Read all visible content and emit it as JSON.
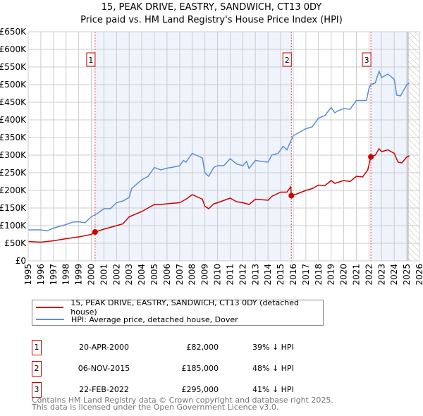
{
  "chart_data": {
    "type": "line",
    "title": "15, PEAK DRIVE, EASTRY, SANDWICH, CT13 0DY",
    "subtitle": "Price paid vs. HM Land Registry's House Price Index (HPI)",
    "xlim": [
      1995,
      2026
    ],
    "ylim": [
      0,
      650000
    ],
    "y_ticks": [
      0,
      50000,
      100000,
      150000,
      200000,
      250000,
      300000,
      350000,
      400000,
      450000,
      500000,
      550000,
      600000,
      650000
    ],
    "y_tick_labels": [
      "£0",
      "£50K",
      "£100K",
      "£150K",
      "£200K",
      "£250K",
      "£300K",
      "£350K",
      "£400K",
      "£450K",
      "£500K",
      "£550K",
      "£600K",
      "£650K"
    ],
    "x_tick_labels": [
      "1995",
      "1996",
      "1997",
      "1998",
      "1999",
      "2000",
      "2001",
      "2002",
      "2003",
      "2004",
      "2005",
      "2006",
      "2007",
      "2008",
      "2009",
      "2010",
      "2011",
      "2012",
      "2013",
      "2014",
      "2015",
      "2016",
      "2017",
      "2018",
      "2019",
      "2020",
      "2021",
      "2022",
      "2023",
      "2024",
      "2025",
      "2026"
    ],
    "grid": true,
    "series": [
      {
        "name": "15, PEAK DRIVE, EASTRY, SANDWICH, CT13 0DY (detached house)",
        "color": "#cc0000",
        "x": [
          1995,
          1996,
          1997,
          1998,
          1999,
          2000,
          2000.3,
          2001,
          2002,
          2002.5,
          2003,
          2004,
          2005,
          2005.5,
          2006,
          2007,
          2007.5,
          2008,
          2008.8,
          2009,
          2009.3,
          2009.7,
          2010,
          2011,
          2011.5,
          2012,
          2012.5,
          2013,
          2014,
          2014.3,
          2015,
          2015.5,
          2015.8,
          2015.85,
          2016.3,
          2017,
          2017.5,
          2018,
          2018.5,
          2019,
          2019.3,
          2020,
          2020.5,
          2021,
          2021.5,
          2021.9,
          2022.15,
          2022.5,
          2022.8,
          2023,
          2023.5,
          2024,
          2024.3,
          2024.6,
          2025,
          2025.2
        ],
        "y": [
          55,
          53,
          57,
          63,
          68,
          75,
          82,
          90,
          100,
          105,
          125,
          140,
          160,
          160,
          162,
          165,
          175,
          188,
          175,
          155,
          148,
          162,
          165,
          178,
          168,
          165,
          160,
          175,
          172,
          183,
          195,
          195,
          210,
          185,
          190,
          200,
          205,
          215,
          213,
          228,
          220,
          228,
          225,
          240,
          238,
          258,
          295,
          300,
          318,
          310,
          315,
          305,
          280,
          278,
          295,
          298
        ]
      },
      {
        "name": "HPI: Average price, detached house, Dover",
        "color": "#5b8fd0",
        "x": [
          1995,
          1996,
          1996.5,
          1997,
          1998,
          1998.5,
          1999,
          1999.5,
          2000,
          2000.5,
          2001,
          2001.5,
          2002,
          2002.5,
          2003,
          2003.2,
          2003.5,
          2004,
          2004.5,
          2005,
          2005.5,
          2006,
          2006.5,
          2007,
          2007.3,
          2007.5,
          2008,
          2008.3,
          2008.8,
          2009,
          2009.3,
          2009.7,
          2010,
          2010.5,
          2011,
          2011.5,
          2012,
          2012.3,
          2012.5,
          2013,
          2013.5,
          2014,
          2014.3,
          2014.8,
          2015.2,
          2015.5,
          2015.8,
          2016,
          2016.5,
          2017,
          2017.5,
          2018,
          2018.5,
          2019,
          2019.3,
          2019.5,
          2020,
          2020.5,
          2021,
          2021.5,
          2021.8,
          2022,
          2022.15,
          2022.5,
          2022.8,
          2023,
          2023.5,
          2024,
          2024.2,
          2024.5,
          2025,
          2025.2
        ],
        "y": [
          88,
          88,
          85,
          93,
          103,
          110,
          111,
          108,
          125,
          135,
          148,
          148,
          165,
          170,
          180,
          205,
          215,
          230,
          240,
          265,
          258,
          263,
          266,
          270,
          285,
          280,
          305,
          300,
          292,
          250,
          240,
          265,
          270,
          270,
          290,
          275,
          270,
          282,
          262,
          285,
          282,
          280,
          300,
          305,
          325,
          315,
          340,
          355,
          365,
          375,
          380,
          405,
          412,
          435,
          420,
          425,
          432,
          430,
          455,
          455,
          455,
          490,
          500,
          505,
          538,
          520,
          530,
          515,
          470,
          468,
          500,
          505
        ]
      }
    ],
    "y_units": "thousands GBP",
    "annotations": [
      {
        "label": "1",
        "x": 2000.3,
        "y": 82
      },
      {
        "label": "2",
        "x": 2015.85,
        "y": 185
      },
      {
        "label": "3",
        "x": 2022.15,
        "y": 295
      }
    ],
    "forecast_start": 2025.1,
    "legend_placement": "below"
  },
  "legend": {
    "property": "15, PEAK DRIVE, EASTRY, SANDWICH, CT13 0DY (detached house)",
    "hpi": "HPI: Average price, detached house, Dover"
  },
  "transactions": [
    {
      "num": "1",
      "date": "20-APR-2000",
      "price": "£82,000",
      "pct": "39% ↓ HPI"
    },
    {
      "num": "2",
      "date": "06-NOV-2015",
      "price": "£185,000",
      "pct": "48% ↓ HPI"
    },
    {
      "num": "3",
      "date": "22-FEB-2022",
      "price": "£295,000",
      "pct": "41% ↓ HPI"
    }
  ],
  "footer": {
    "line1": "Contains HM Land Registry data © Crown copyright and database right 2025.",
    "line2": "This data is licensed under the Open Government Licence v3.0."
  }
}
